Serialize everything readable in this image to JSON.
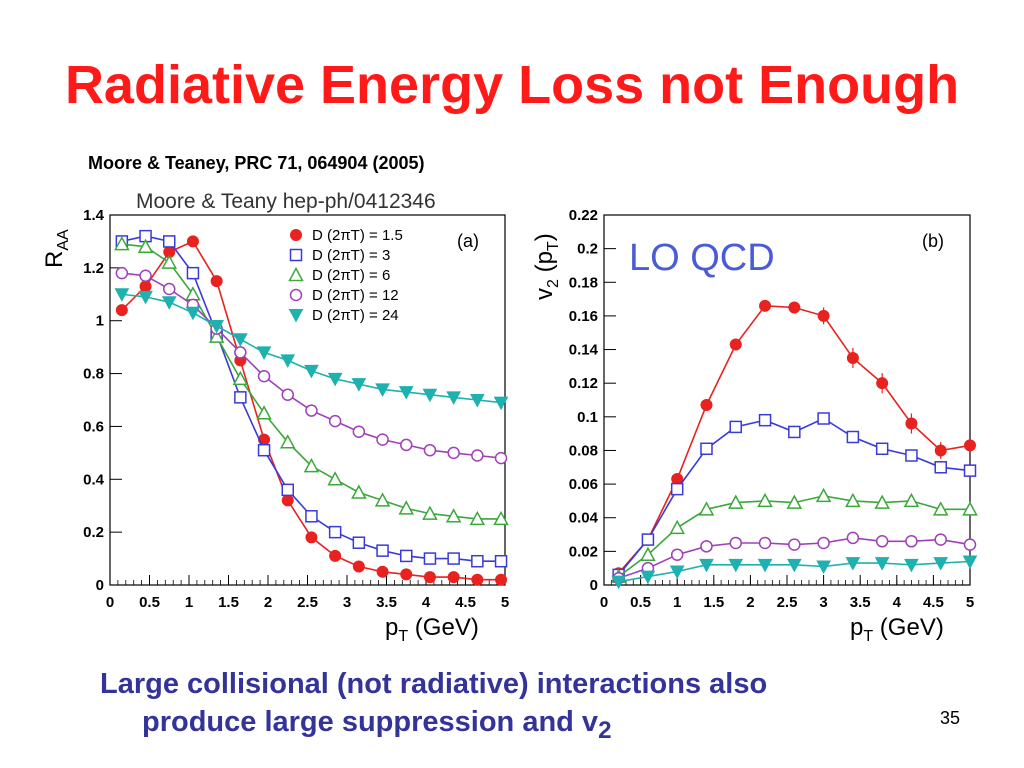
{
  "slide": {
    "title": "Radiative Energy Loss not Enough",
    "citation": "Moore & Teaney, PRC 71, 064904 (2005)",
    "figure_header": "Moore & Teany hep-ph/0412346",
    "bottom_text": {
      "line1": "Large collisional (not radiative) interactions also",
      "line2_main": "produce large suppression and v",
      "line2_sub": "2"
    },
    "page_number": "35"
  },
  "colors": {
    "title": "#ff1a1a",
    "body_text": "#333399",
    "series": [
      "#e8221e",
      "#3a3ad8",
      "#3aa83a",
      "#a040b8",
      "#1fb0b0"
    ]
  },
  "chart_data": [
    {
      "type": "line",
      "panel_label": "(a)",
      "ylabel_main": "R",
      "ylabel_sub": "AA",
      "xlabel_main": "p",
      "xlabel_sub": "T",
      "xlabel_unit": " (GeV)",
      "xlim": [
        0,
        5
      ],
      "ylim": [
        0,
        1.4
      ],
      "xticks": [
        "0",
        "0.5",
        "1",
        "1.5",
        "2",
        "2.5",
        "3",
        "3.5",
        "4",
        "4.5",
        "5"
      ],
      "yticks": [
        "0",
        "0.2",
        "0.4",
        "0.6",
        "0.8",
        "1",
        "1.2",
        "1.4"
      ],
      "legend_position": "top-right",
      "grid": false,
      "series": [
        {
          "name": "D (2πT) = 1.5",
          "marker": "circle-filled",
          "x": [
            0.15,
            0.45,
            0.75,
            1.05,
            1.35,
            1.65,
            1.95,
            2.25,
            2.55,
            2.85,
            3.15,
            3.45,
            3.75,
            4.05,
            4.35,
            4.65,
            4.95
          ],
          "y": [
            1.04,
            1.13,
            1.26,
            1.3,
            1.15,
            0.85,
            0.55,
            0.32,
            0.18,
            0.11,
            0.07,
            0.05,
            0.04,
            0.03,
            0.03,
            0.02,
            0.02
          ]
        },
        {
          "name": "D (2πT) = 3",
          "marker": "square-open",
          "x": [
            0.15,
            0.45,
            0.75,
            1.05,
            1.35,
            1.65,
            1.95,
            2.25,
            2.55,
            2.85,
            3.15,
            3.45,
            3.75,
            4.05,
            4.35,
            4.65,
            4.95
          ],
          "y": [
            1.3,
            1.32,
            1.3,
            1.18,
            0.95,
            0.71,
            0.51,
            0.36,
            0.26,
            0.2,
            0.16,
            0.13,
            0.11,
            0.1,
            0.1,
            0.09,
            0.09
          ]
        },
        {
          "name": "D (2πT) = 6",
          "marker": "triangle-open",
          "x": [
            0.15,
            0.45,
            0.75,
            1.05,
            1.35,
            1.65,
            1.95,
            2.25,
            2.55,
            2.85,
            3.15,
            3.45,
            3.75,
            4.05,
            4.35,
            4.65,
            4.95
          ],
          "y": [
            1.29,
            1.28,
            1.22,
            1.1,
            0.94,
            0.78,
            0.65,
            0.54,
            0.45,
            0.4,
            0.35,
            0.32,
            0.29,
            0.27,
            0.26,
            0.25,
            0.25
          ]
        },
        {
          "name": "D (2πT) = 12",
          "marker": "circle-open",
          "x": [
            0.15,
            0.45,
            0.75,
            1.05,
            1.35,
            1.65,
            1.95,
            2.25,
            2.55,
            2.85,
            3.15,
            3.45,
            3.75,
            4.05,
            4.35,
            4.65,
            4.95
          ],
          "y": [
            1.18,
            1.17,
            1.12,
            1.06,
            0.97,
            0.88,
            0.79,
            0.72,
            0.66,
            0.62,
            0.58,
            0.55,
            0.53,
            0.51,
            0.5,
            0.49,
            0.48
          ]
        },
        {
          "name": "D (2πT) = 24",
          "marker": "triangle-down-filled",
          "x": [
            0.15,
            0.45,
            0.75,
            1.05,
            1.35,
            1.65,
            1.95,
            2.25,
            2.55,
            2.85,
            3.15,
            3.45,
            3.75,
            4.05,
            4.35,
            4.65,
            4.95
          ],
          "y": [
            1.1,
            1.09,
            1.07,
            1.03,
            0.98,
            0.93,
            0.88,
            0.85,
            0.81,
            0.78,
            0.76,
            0.74,
            0.73,
            0.72,
            0.71,
            0.7,
            0.69
          ]
        }
      ]
    },
    {
      "type": "line",
      "panel_label": "(b)",
      "annotation": "LO QCD",
      "ylabel_main": "v",
      "ylabel_sub": "2",
      "ylabel_unit_main": " (p",
      "ylabel_unit_sub": "T",
      "ylabel_unit_end": ")",
      "xlabel_main": "p",
      "xlabel_sub": "T",
      "xlabel_unit": " (GeV)",
      "xlim": [
        0,
        5
      ],
      "ylim": [
        0,
        0.22
      ],
      "xticks": [
        "0",
        "0.5",
        "1",
        "1.5",
        "2",
        "2.5",
        "3",
        "3.5",
        "4",
        "4.5",
        "5"
      ],
      "yticks": [
        "0",
        "0.02",
        "0.04",
        "0.06",
        "0.08",
        "0.1",
        "0.12",
        "0.14",
        "0.16",
        "0.18",
        "0.2",
        "0.22"
      ],
      "grid": false,
      "series": [
        {
          "name": "D (2πT) = 1.5",
          "marker": "circle-filled",
          "x": [
            0.2,
            0.6,
            1.0,
            1.4,
            1.8,
            2.2,
            2.6,
            3.0,
            3.4,
            3.8,
            4.2,
            4.6,
            5.0
          ],
          "y": [
            0.007,
            0.027,
            0.063,
            0.107,
            0.143,
            0.166,
            0.165,
            0.16,
            0.135,
            0.12,
            0.096,
            0.08,
            0.083
          ],
          "err": [
            0,
            0,
            0,
            0,
            0,
            0,
            0.003,
            0.005,
            0.006,
            0.006,
            0.006,
            0.005,
            0
          ]
        },
        {
          "name": "D (2πT) = 3",
          "marker": "square-open",
          "x": [
            0.2,
            0.6,
            1.0,
            1.4,
            1.8,
            2.2,
            2.6,
            3.0,
            3.4,
            3.8,
            4.2,
            4.6,
            5.0
          ],
          "y": [
            0.006,
            0.027,
            0.057,
            0.081,
            0.094,
            0.098,
            0.091,
            0.099,
            0.088,
            0.081,
            0.077,
            0.07,
            0.068
          ]
        },
        {
          "name": "D (2πT) = 6",
          "marker": "triangle-open",
          "x": [
            0.2,
            0.6,
            1.0,
            1.4,
            1.8,
            2.2,
            2.6,
            3.0,
            3.4,
            3.8,
            4.2,
            4.6,
            5.0
          ],
          "y": [
            0.005,
            0.018,
            0.034,
            0.045,
            0.049,
            0.05,
            0.049,
            0.053,
            0.05,
            0.049,
            0.05,
            0.045,
            0.045
          ]
        },
        {
          "name": "D (2πT) = 12",
          "marker": "circle-open",
          "x": [
            0.2,
            0.6,
            1.0,
            1.4,
            1.8,
            2.2,
            2.6,
            3.0,
            3.4,
            3.8,
            4.2,
            4.6,
            5.0
          ],
          "y": [
            0.004,
            0.01,
            0.018,
            0.023,
            0.025,
            0.025,
            0.024,
            0.025,
            0.028,
            0.026,
            0.026,
            0.027,
            0.024
          ]
        },
        {
          "name": "D (2πT) = 24",
          "marker": "triangle-down-filled",
          "x": [
            0.2,
            0.6,
            1.0,
            1.4,
            1.8,
            2.2,
            2.6,
            3.0,
            3.4,
            3.8,
            4.2,
            4.6,
            5.0
          ],
          "y": [
            0.002,
            0.005,
            0.008,
            0.012,
            0.012,
            0.012,
            0.012,
            0.011,
            0.013,
            0.013,
            0.012,
            0.013,
            0.014
          ]
        }
      ]
    }
  ]
}
